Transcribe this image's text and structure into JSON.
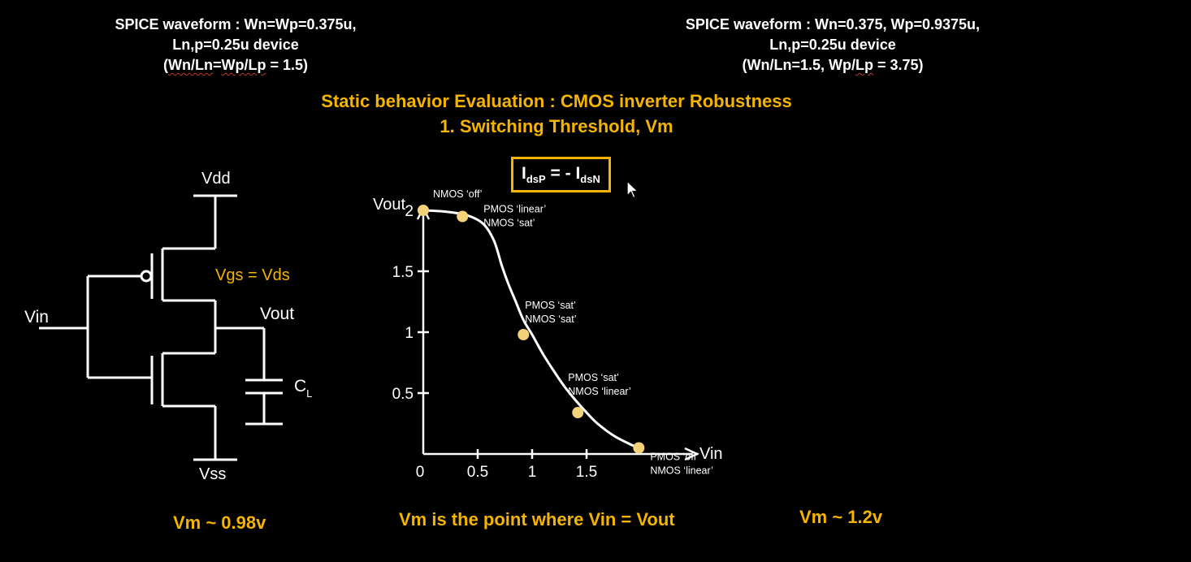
{
  "header_left": {
    "line1": "SPICE waveform : Wn=Wp=0.375u,",
    "line2": "Ln,p=0.25u device",
    "line3_open": "(",
    "line3_a": "Wn/Ln",
    "line3_eq": "=",
    "line3_b": "Wp/Lp",
    "line3_rest": " = 1.5)"
  },
  "header_right": {
    "line1": "SPICE waveform : Wn=0.375, Wp=0.9375u,",
    "line2": "Ln,p=0.25u device",
    "line3_pre": "(Wn/Ln=1.5, Wp/",
    "line3_lp": "Lp",
    "line3_rest": " = 3.75)"
  },
  "title": {
    "line1": "Static behavior Evaluation : CMOS inverter Robustness",
    "line2": "1. Switching Threshold, Vm"
  },
  "equation": {
    "i1": "I",
    "s1": "dsP",
    "mid": " = - I",
    "s2": "dsN"
  },
  "circuit": {
    "vdd": "Vdd",
    "vss": "Vss",
    "vin": "Vin",
    "vout": "Vout",
    "cap": "C",
    "cap_sub": "L",
    "vgs_vds": "Vgs = Vds"
  },
  "chart_data": {
    "type": "line",
    "xlabel": "Vin",
    "ylabel": "Vout",
    "x_ticks": [
      "0",
      "0.5",
      "1",
      "1.5"
    ],
    "y_ticks": [
      "2",
      "1.5",
      "1",
      "0.5"
    ],
    "xlim": [
      0,
      2.5
    ],
    "ylim": [
      0,
      2.5
    ],
    "curve": {
      "x": [
        0,
        0.2,
        0.4,
        0.55,
        0.65,
        0.72,
        0.78,
        0.85,
        0.92,
        1.0,
        1.1,
        1.2,
        1.3,
        1.4,
        1.5,
        1.6,
        1.75,
        1.9,
        1.98
      ],
      "y": [
        2.0,
        1.99,
        1.96,
        1.89,
        1.75,
        1.55,
        1.4,
        1.25,
        1.1,
        0.98,
        0.82,
        0.68,
        0.55,
        0.44,
        0.34,
        0.25,
        0.15,
        0.08,
        0.05
      ]
    },
    "points": [
      {
        "x": 0.0,
        "y": 2.0,
        "line1": "PMOS ‘linear’",
        "line2": "NMOS ‘off’"
      },
      {
        "x": 0.36,
        "y": 1.95,
        "line1": "PMOS ‘linear’",
        "line2": "NMOS ‘sat’"
      },
      {
        "x": 0.92,
        "y": 0.98,
        "line1": "PMOS ‘sat’",
        "line2": "NMOS ‘sat’"
      },
      {
        "x": 1.42,
        "y": 0.34,
        "line1": "PMOS ‘sat’",
        "line2": "NMOS ‘linear’"
      },
      {
        "x": 1.98,
        "y": 0.05,
        "line1": "PMOS ‘off’",
        "line2": "NMOS ‘linear’"
      }
    ],
    "colors": {
      "curve": "#ffffff",
      "point": "#F3D27A"
    }
  },
  "footer": {
    "vm_left": "Vm ~ 0.98v",
    "vm_center": "Vm is the point where Vin = Vout",
    "vm_right": "Vm ~ 1.2v"
  },
  "colors": {
    "accent": "#F5B400",
    "background": "#000000",
    "text": "#ffffff"
  }
}
